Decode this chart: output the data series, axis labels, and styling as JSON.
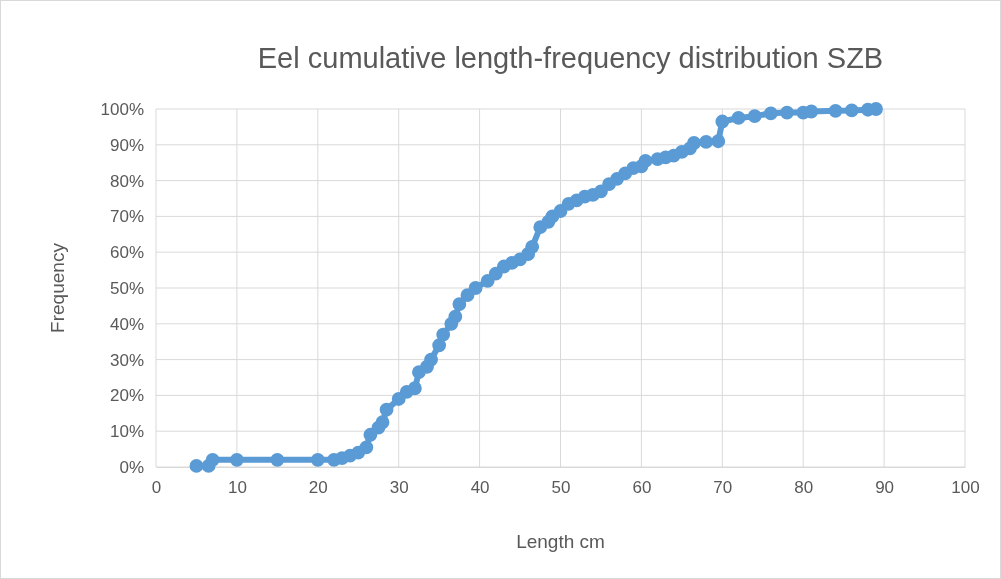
{
  "chart_data": {
    "type": "line",
    "title": "Eel cumulative length-frequency distribution SZB",
    "xlabel": "Length cm",
    "ylabel": "Frequency",
    "xlim": [
      0,
      100
    ],
    "xticks": [
      0,
      10,
      20,
      30,
      40,
      50,
      60,
      70,
      80,
      90,
      100
    ],
    "ylim": [
      0,
      100
    ],
    "yticks": [
      {
        "value": 0,
        "label": "0%"
      },
      {
        "value": 10,
        "label": "10%"
      },
      {
        "value": 20,
        "label": "20%"
      },
      {
        "value": 30,
        "label": "30%"
      },
      {
        "value": 40,
        "label": "40%"
      },
      {
        "value": 50,
        "label": "50%"
      },
      {
        "value": 60,
        "label": "60%"
      },
      {
        "value": 70,
        "label": "70%"
      },
      {
        "value": 80,
        "label": "80%"
      },
      {
        "value": 90,
        "label": "90%"
      },
      {
        "value": 100,
        "label": "100%"
      }
    ],
    "grid": true,
    "marker": "circle",
    "line_style": "solid",
    "x": [
      5,
      6.5,
      7,
      10,
      15,
      20,
      22,
      23,
      24,
      25,
      26,
      26.5,
      27.5,
      28,
      28.5,
      30,
      31,
      32,
      32.5,
      33.5,
      34,
      35,
      35.5,
      36.5,
      37,
      37.5,
      38.5,
      39.5,
      41,
      42,
      43,
      44,
      45,
      46,
      46.5,
      47.5,
      48.5,
      49,
      50,
      51,
      52,
      53,
      54,
      55,
      56,
      57,
      58,
      59,
      60,
      60.5,
      62,
      63,
      64,
      65,
      66,
      66.5,
      68,
      69.5,
      70,
      72,
      74,
      76,
      78,
      80,
      81,
      84,
      86,
      88,
      89
    ],
    "series": [
      {
        "color": "#5b9bd5",
        "values": [
          0.3,
          0.3,
          2,
          2,
          2,
          2,
          2,
          2.5,
          3.2,
          4,
          5.5,
          9,
          11,
          12.5,
          16,
          19,
          21,
          22,
          26.5,
          28,
          30,
          34,
          37,
          40,
          42,
          45.5,
          48,
          50,
          52,
          54,
          56,
          57,
          58,
          59.5,
          61.5,
          67,
          68.5,
          70,
          71.5,
          73.5,
          74.5,
          75.5,
          76,
          77,
          79,
          80.5,
          82,
          83.5,
          84,
          85.5,
          86,
          86.5,
          87,
          88,
          89,
          90.5,
          90.8,
          91,
          96.5,
          97.5,
          98,
          98.8,
          99,
          99,
          99.3,
          99.5,
          99.6,
          99.8,
          100
        ]
      }
    ]
  }
}
